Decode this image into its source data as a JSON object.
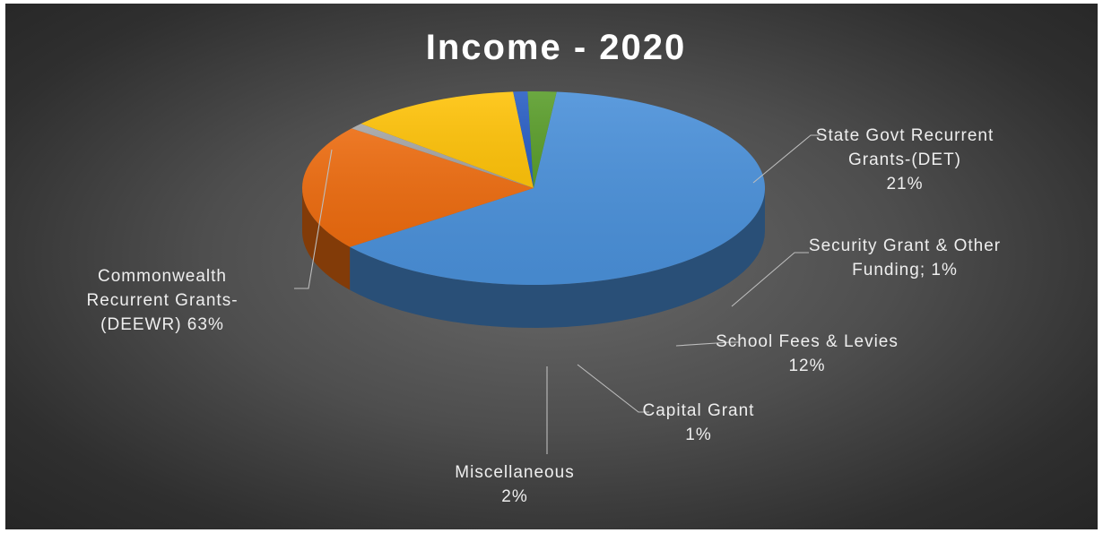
{
  "chart_data": {
    "type": "pie",
    "style": "3d",
    "title": "Income  - 2020",
    "slices": [
      {
        "label": "Commonwealth Recurrent Grants-(DEEWR)",
        "value": 63,
        "color": "#4a90d9",
        "label_lines": [
          "Commonwealth",
          "Recurrent Grants-",
          "(DEEWR) 63%"
        ]
      },
      {
        "label": "State Govt Recurrent Grants-(DET)",
        "value": 21,
        "color": "#ec6b0f",
        "label_lines": [
          "State Govt Recurrent",
          "Grants-(DET)",
          "21%"
        ]
      },
      {
        "label": "Security Grant & Other Funding",
        "value": 1,
        "color": "#a5a5a5",
        "label_lines": [
          "Security Grant & Other",
          "Funding; 1%"
        ]
      },
      {
        "label": "School Fees & Levies",
        "value": 12,
        "color": "#ffc30a",
        "label_lines": [
          "School Fees & Levies",
          "12%"
        ]
      },
      {
        "label": "Capital Grant",
        "value": 1,
        "color": "#2a5fc4",
        "label_lines": [
          "Capital Grant",
          "1%"
        ]
      },
      {
        "label": "Miscellaneous",
        "value": 2,
        "color": "#5b9e2c",
        "label_lines": [
          "Miscellaneous",
          "2%"
        ]
      }
    ]
  }
}
